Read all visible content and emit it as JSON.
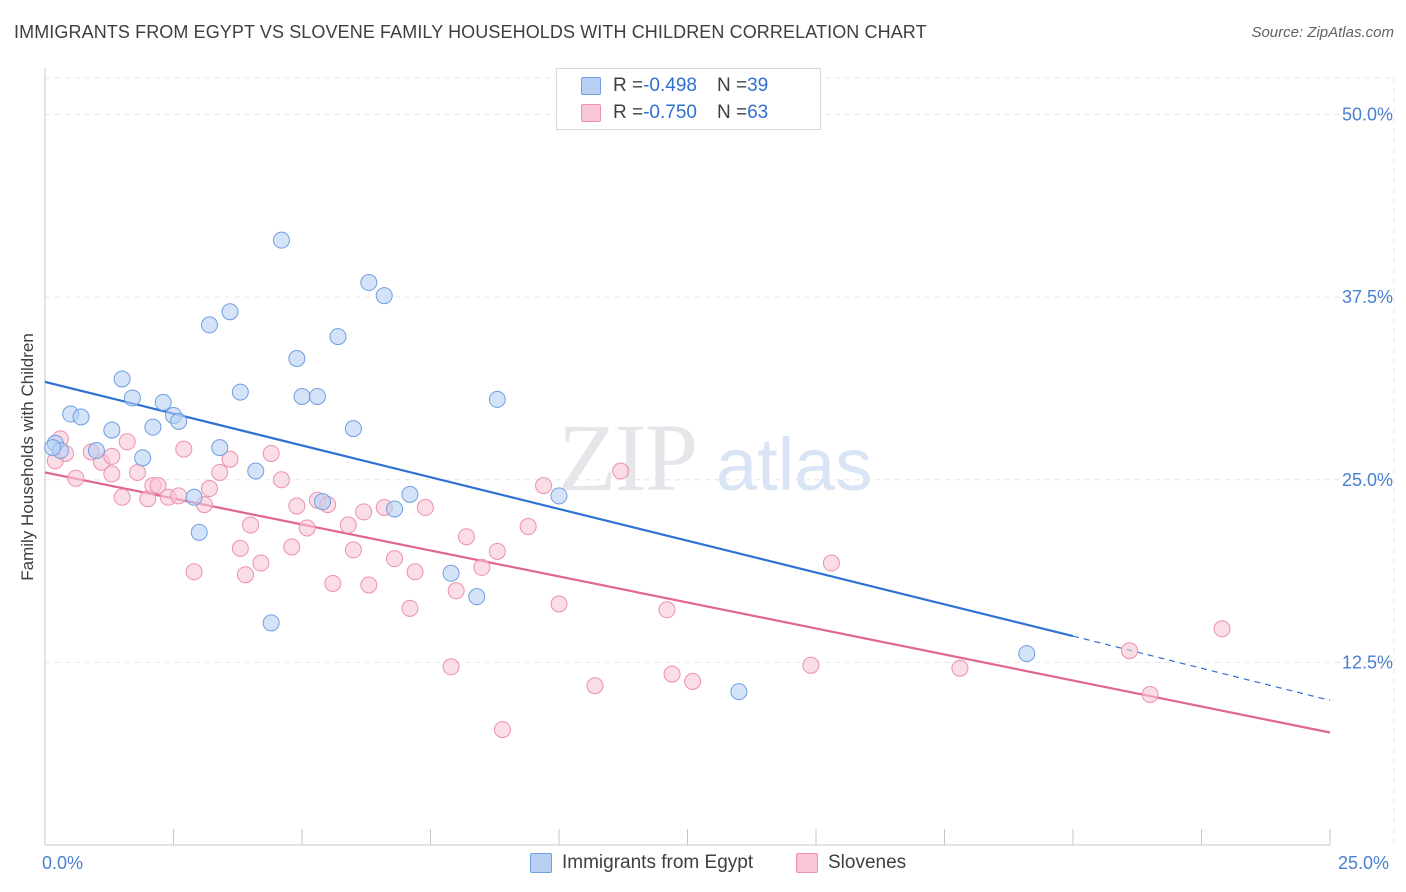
{
  "header": {
    "title": "IMMIGRANTS FROM EGYPT VS SLOVENE FAMILY HOUSEHOLDS WITH CHILDREN CORRELATION CHART",
    "source": "Source: ZipAtlas.com"
  },
  "watermark": {
    "zip": "ZIP",
    "atlas": "atlas"
  },
  "legend": {
    "rows": [
      {
        "r_label": "R = ",
        "r_value": "-0.498",
        "n_label": "N = ",
        "n_value": "39"
      },
      {
        "r_label": "R = ",
        "r_value": "-0.750",
        "n_label": "N = ",
        "n_value": "63"
      }
    ]
  },
  "colors": {
    "blue_fill": "#b8d1f3",
    "blue_stroke": "#6f9fe0",
    "blue_line": "#2f72d3",
    "pink_fill": "#f8c6d6",
    "pink_stroke": "#ee90ae",
    "pink_line": "#e06690",
    "grid": "#e3e6ea",
    "axis_text": "#4a7fd0"
  },
  "chart_data": {
    "type": "scatter",
    "title": "IMMIGRANTS FROM EGYPT VS SLOVENE FAMILY HOUSEHOLDS WITH CHILDREN CORRELATION CHART",
    "xlabel": "",
    "ylabel": "Family Households with Children",
    "xlim": [
      0,
      25
    ],
    "ylim": [
      0,
      52.5
    ],
    "x_tick_labels": [
      "0.0%",
      "25.0%"
    ],
    "y_ticks": [
      12.5,
      25.0,
      37.5,
      50.0
    ],
    "y_tick_labels": [
      "12.5%",
      "25.0%",
      "37.5%",
      "50.0%"
    ],
    "grid": true,
    "legend_position": "top-center",
    "series": [
      {
        "name": "Immigrants from Egypt",
        "r": -0.498,
        "n": 39,
        "trend": {
          "x0": 0,
          "y0": 31.7,
          "x1": 20,
          "y1": 14.3,
          "dashed_to_x": 25,
          "dashed_to_y": 9.9
        },
        "points": [
          [
            0.2,
            27.5
          ],
          [
            0.3,
            27.0
          ],
          [
            0.5,
            29.5
          ],
          [
            0.7,
            29.3
          ],
          [
            1.0,
            27.0
          ],
          [
            1.3,
            28.4
          ],
          [
            1.5,
            31.9
          ],
          [
            1.7,
            30.6
          ],
          [
            1.9,
            26.5
          ],
          [
            2.1,
            28.6
          ],
          [
            2.3,
            30.3
          ],
          [
            2.5,
            29.4
          ],
          [
            2.6,
            29.0
          ],
          [
            2.9,
            23.8
          ],
          [
            3.0,
            21.4
          ],
          [
            3.2,
            35.6
          ],
          [
            3.4,
            27.2
          ],
          [
            3.6,
            36.5
          ],
          [
            3.8,
            31.0
          ],
          [
            4.1,
            25.6
          ],
          [
            4.4,
            15.2
          ],
          [
            4.6,
            41.4
          ],
          [
            4.9,
            33.3
          ],
          [
            5.0,
            30.7
          ],
          [
            5.3,
            30.7
          ],
          [
            5.4,
            23.5
          ],
          [
            5.7,
            34.8
          ],
          [
            6.0,
            28.5
          ],
          [
            6.3,
            38.5
          ],
          [
            6.6,
            37.6
          ],
          [
            6.8,
            23.0
          ],
          [
            7.1,
            24.0
          ],
          [
            7.9,
            18.6
          ],
          [
            8.4,
            17.0
          ],
          [
            8.8,
            30.5
          ],
          [
            10.0,
            23.9
          ],
          [
            13.5,
            10.5
          ],
          [
            19.1,
            13.1
          ],
          [
            0.15,
            27.2
          ]
        ]
      },
      {
        "name": "Slovenes",
        "r": -0.75,
        "n": 63,
        "trend": {
          "x0": 0,
          "y0": 25.5,
          "x1": 25,
          "y1": 7.7
        },
        "points": [
          [
            0.2,
            26.3
          ],
          [
            0.4,
            26.8
          ],
          [
            0.6,
            25.1
          ],
          [
            0.9,
            26.9
          ],
          [
            1.1,
            26.2
          ],
          [
            1.3,
            26.6
          ],
          [
            1.3,
            25.4
          ],
          [
            1.5,
            23.8
          ],
          [
            1.6,
            27.6
          ],
          [
            1.8,
            25.5
          ],
          [
            2.0,
            23.7
          ],
          [
            2.1,
            24.6
          ],
          [
            2.2,
            24.6
          ],
          [
            2.4,
            23.8
          ],
          [
            2.6,
            23.9
          ],
          [
            2.7,
            27.1
          ],
          [
            2.9,
            18.7
          ],
          [
            3.1,
            23.3
          ],
          [
            3.2,
            24.4
          ],
          [
            3.4,
            25.5
          ],
          [
            3.6,
            26.4
          ],
          [
            3.8,
            20.3
          ],
          [
            3.9,
            18.5
          ],
          [
            4.0,
            21.9
          ],
          [
            4.2,
            19.3
          ],
          [
            4.4,
            26.8
          ],
          [
            4.6,
            25.0
          ],
          [
            4.8,
            20.4
          ],
          [
            4.9,
            23.2
          ],
          [
            5.1,
            21.7
          ],
          [
            5.3,
            23.6
          ],
          [
            5.5,
            23.3
          ],
          [
            5.6,
            17.9
          ],
          [
            5.9,
            21.9
          ],
          [
            6.0,
            20.2
          ],
          [
            6.2,
            22.8
          ],
          [
            6.3,
            17.8
          ],
          [
            6.6,
            23.1
          ],
          [
            6.8,
            19.6
          ],
          [
            7.1,
            16.2
          ],
          [
            7.2,
            18.7
          ],
          [
            7.4,
            23.1
          ],
          [
            7.9,
            12.2
          ],
          [
            8.0,
            17.4
          ],
          [
            8.2,
            21.1
          ],
          [
            8.5,
            19.0
          ],
          [
            8.8,
            20.1
          ],
          [
            8.9,
            7.9
          ],
          [
            9.4,
            21.8
          ],
          [
            9.7,
            24.6
          ],
          [
            10.0,
            16.5
          ],
          [
            10.7,
            10.9
          ],
          [
            11.2,
            25.6
          ],
          [
            12.1,
            16.1
          ],
          [
            12.2,
            11.7
          ],
          [
            12.6,
            11.2
          ],
          [
            14.9,
            12.3
          ],
          [
            15.3,
            19.3
          ],
          [
            17.8,
            12.1
          ],
          [
            21.1,
            13.3
          ],
          [
            21.5,
            10.3
          ],
          [
            22.9,
            14.8
          ],
          [
            0.3,
            27.8
          ]
        ]
      }
    ]
  },
  "bottom_legend": [
    {
      "label": "Immigrants from Egypt"
    },
    {
      "label": "Slovenes"
    }
  ]
}
